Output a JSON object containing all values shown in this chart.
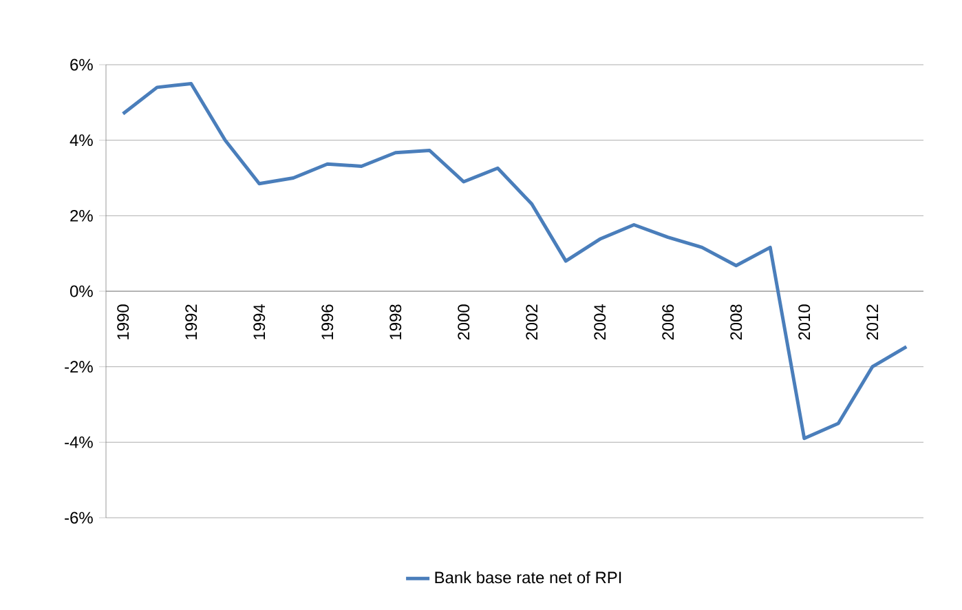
{
  "chart_data": {
    "type": "line",
    "categories": [
      "1990",
      null,
      "1992",
      null,
      "1994",
      null,
      "1996",
      null,
      "1998",
      null,
      "2000",
      null,
      "2002",
      null,
      "2004",
      null,
      "2006",
      null,
      "2008",
      null,
      "2010",
      null,
      "2012",
      null
    ],
    "series": [
      {
        "name": "Bank base rate net of RPI",
        "color": "#4a7ebb",
        "values": [
          4.7,
          5.4,
          5.5,
          4.0,
          2.85,
          3.0,
          3.37,
          3.31,
          3.67,
          3.73,
          2.9,
          3.26,
          2.31,
          0.8,
          1.38,
          1.76,
          1.43,
          1.16,
          0.68,
          1.16,
          -3.9,
          -3.5,
          -2.0,
          -1.47
        ]
      }
    ],
    "ylim": [
      -6,
      6
    ],
    "yticks": [
      {
        "value": -6,
        "label": "-6%"
      },
      {
        "value": -4,
        "label": "-4%"
      },
      {
        "value": -2,
        "label": "-2%"
      },
      {
        "value": 0,
        "label": "0%"
      },
      {
        "value": 2,
        "label": "2%"
      },
      {
        "value": 4,
        "label": "4%"
      },
      {
        "value": 6,
        "label": "6%"
      }
    ],
    "grid": "y",
    "legend": "bottom",
    "marker": "none",
    "line_style": "solid"
  }
}
